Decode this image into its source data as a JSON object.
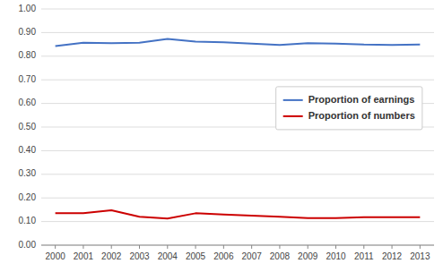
{
  "chart_data": {
    "type": "line",
    "x": [
      2000,
      2001,
      2002,
      2003,
      2004,
      2005,
      2006,
      2007,
      2008,
      2009,
      2010,
      2011,
      2012,
      2013
    ],
    "xlim": [
      1999.5,
      2013.5
    ],
    "xticks": [
      2000,
      2001,
      2002,
      2003,
      2004,
      2005,
      2006,
      2007,
      2008,
      2009,
      2010,
      2011,
      2012,
      2013
    ],
    "ylim": [
      0.0,
      1.0
    ],
    "yticks": [
      {
        "value": 0.0,
        "label": "0.00"
      },
      {
        "value": 0.1,
        "label": "0.10"
      },
      {
        "value": 0.2,
        "label": "0.20"
      },
      {
        "value": 0.3,
        "label": "0.30"
      },
      {
        "value": 0.4,
        "label": "0.40"
      },
      {
        "value": 0.5,
        "label": "0.50"
      },
      {
        "value": 0.6,
        "label": "0.60"
      },
      {
        "value": 0.7,
        "label": "0.70"
      },
      {
        "value": 0.8,
        "label": "0.80"
      },
      {
        "value": 0.9,
        "label": "0.90"
      },
      {
        "value": 1.0,
        "label": "1.00"
      }
    ],
    "grid": true,
    "legend": "right",
    "series": [
      {
        "name": "Proportion of earnings",
        "color": "#4472C4",
        "values": [
          0.843,
          0.857,
          0.855,
          0.857,
          0.873,
          0.862,
          0.859,
          0.853,
          0.848,
          0.855,
          0.853,
          0.849,
          0.848,
          0.849
        ]
      },
      {
        "name": "Proportion of numbers",
        "color": "#CC0000",
        "values": [
          0.135,
          0.135,
          0.148,
          0.12,
          0.113,
          0.135,
          0.13,
          0.125,
          0.12,
          0.115,
          0.115,
          0.118,
          0.118,
          0.118
        ]
      }
    ]
  }
}
